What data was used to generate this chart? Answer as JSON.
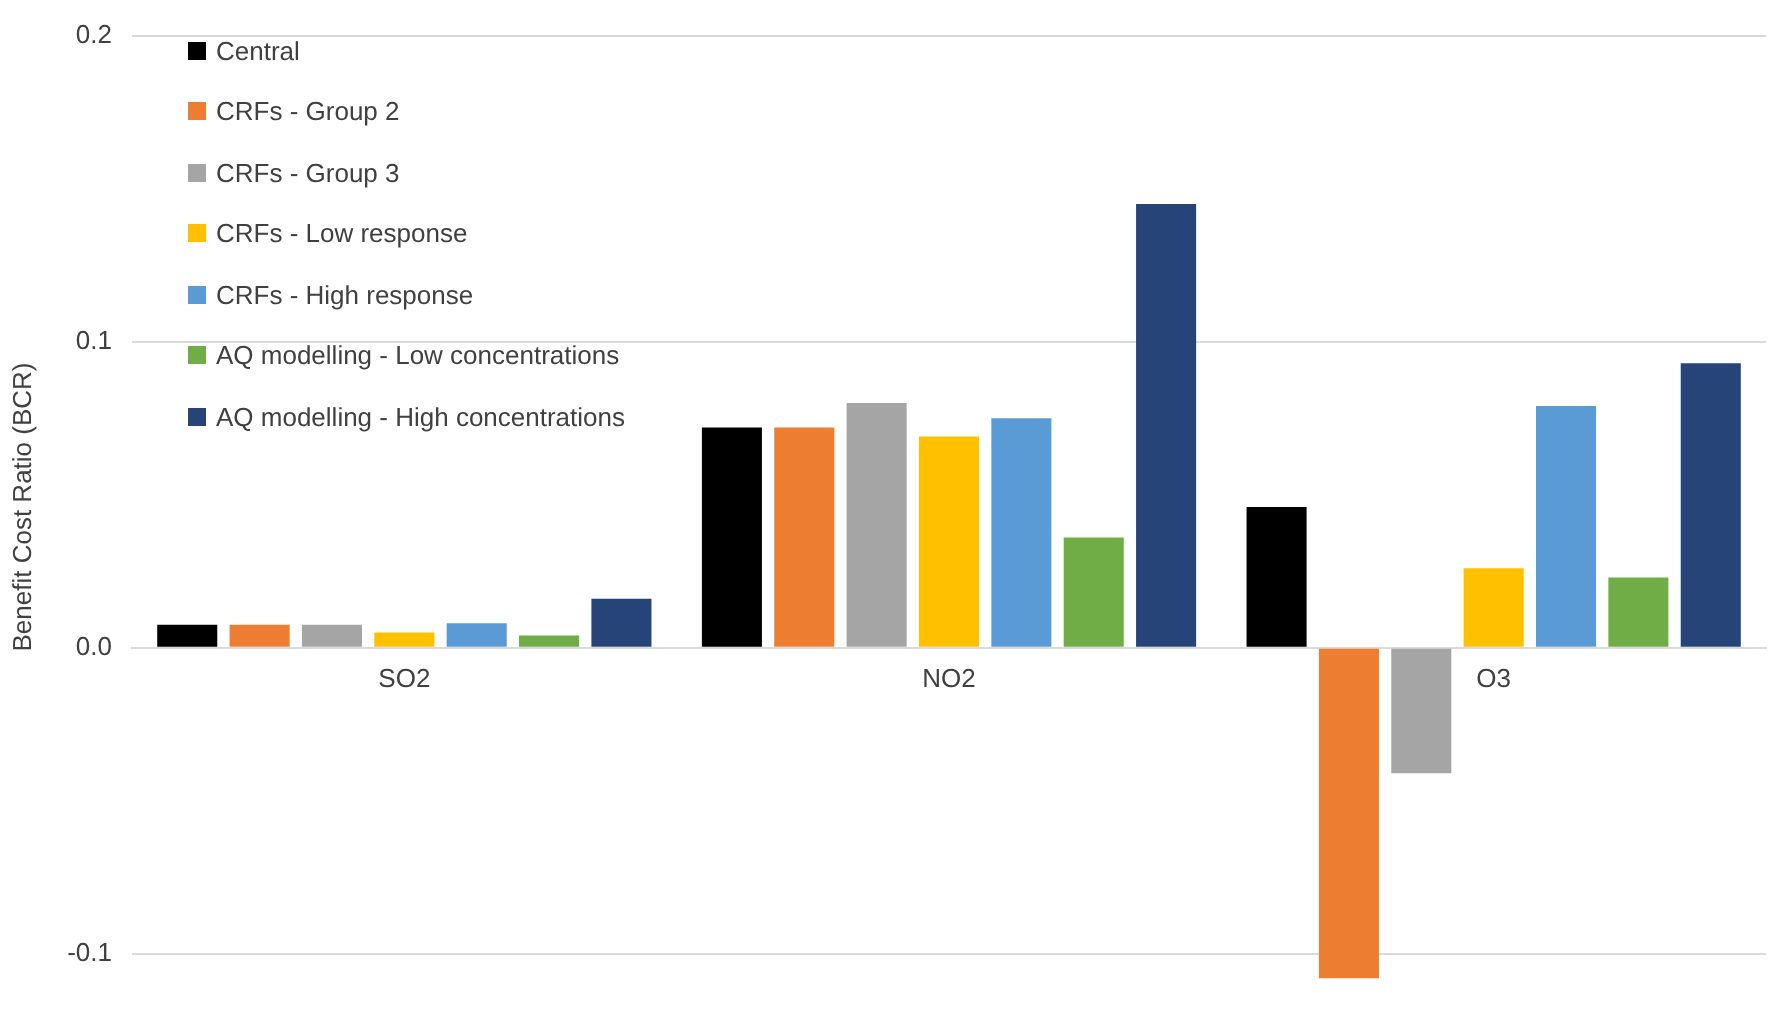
{
  "chart_data": {
    "type": "bar",
    "ylabel": "Benefit Cost Ratio (BCR)",
    "categories": [
      "SO2",
      "NO2",
      "O3"
    ],
    "series": [
      {
        "name": "Central",
        "color": "#000000",
        "values": [
          0.0075,
          0.072,
          0.046
        ]
      },
      {
        "name": "CRFs - Group 2",
        "color": "#ed7d31",
        "values": [
          0.0075,
          0.072,
          -0.108
        ]
      },
      {
        "name": "CRFs - Group 3",
        "color": "#a5a5a5",
        "values": [
          0.0075,
          0.08,
          -0.041
        ]
      },
      {
        "name": "CRFs - Low response",
        "color": "#ffc000",
        "values": [
          0.005,
          0.069,
          0.026
        ]
      },
      {
        "name": "CRFs - High response",
        "color": "#5b9bd5",
        "values": [
          0.008,
          0.075,
          0.079
        ]
      },
      {
        "name": "AQ modelling - Low concentrations",
        "color": "#70ad47",
        "values": [
          0.004,
          0.036,
          0.023
        ]
      },
      {
        "name": "AQ modelling - High concentrations",
        "color": "#264478",
        "values": [
          0.016,
          0.145,
          0.093
        ]
      }
    ],
    "ylim": [
      -0.108,
      0.2
    ],
    "yticks": [
      {
        "value": -0.1,
        "label": "-0.1"
      },
      {
        "value": 0,
        "label": "0.0"
      },
      {
        "value": 0.1,
        "label": "0.1"
      },
      {
        "value": 0.2,
        "label": "0.2"
      }
    ],
    "grid": "y",
    "legend": "top left"
  }
}
